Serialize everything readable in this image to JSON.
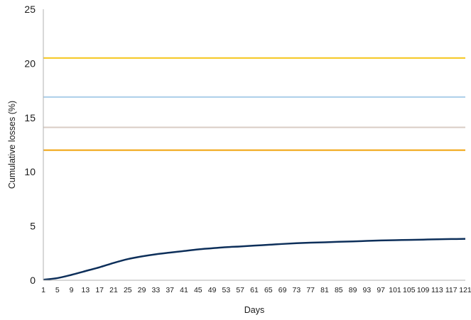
{
  "chart_data": {
    "type": "line",
    "title": "",
    "xlabel": "Days",
    "ylabel": "Cumulative losses (%)",
    "xlim": [
      1,
      121
    ],
    "ylim": [
      0,
      25
    ],
    "y_ticks": [
      0,
      5,
      10,
      15,
      20,
      25
    ],
    "x_ticks": [
      1,
      5,
      9,
      13,
      17,
      21,
      25,
      29,
      33,
      37,
      41,
      45,
      49,
      53,
      57,
      61,
      65,
      69,
      73,
      77,
      81,
      85,
      89,
      93,
      97,
      101,
      105,
      109,
      113,
      117,
      121
    ],
    "grid": false,
    "legend": "none",
    "reference_lines": [
      {
        "y": 20.5,
        "color": "#f5c518"
      },
      {
        "y": 16.9,
        "color": "#a9cde8"
      },
      {
        "y": 14.1,
        "color": "#d9ccc4"
      },
      {
        "y": 12.0,
        "color": "#f0a20a"
      }
    ],
    "series": [
      {
        "color": "#0d2f5a",
        "x": [
          1,
          5,
          9,
          13,
          17,
          21,
          25,
          29,
          33,
          37,
          41,
          45,
          49,
          53,
          57,
          61,
          65,
          69,
          73,
          77,
          81,
          85,
          89,
          93,
          97,
          101,
          105,
          109,
          113,
          117,
          121
        ],
        "y": [
          0.05,
          0.2,
          0.5,
          0.85,
          1.2,
          1.6,
          1.95,
          2.2,
          2.4,
          2.55,
          2.7,
          2.85,
          2.95,
          3.05,
          3.12,
          3.2,
          3.27,
          3.35,
          3.42,
          3.47,
          3.5,
          3.55,
          3.58,
          3.63,
          3.67,
          3.7,
          3.72,
          3.75,
          3.78,
          3.8,
          3.82
        ]
      }
    ]
  }
}
